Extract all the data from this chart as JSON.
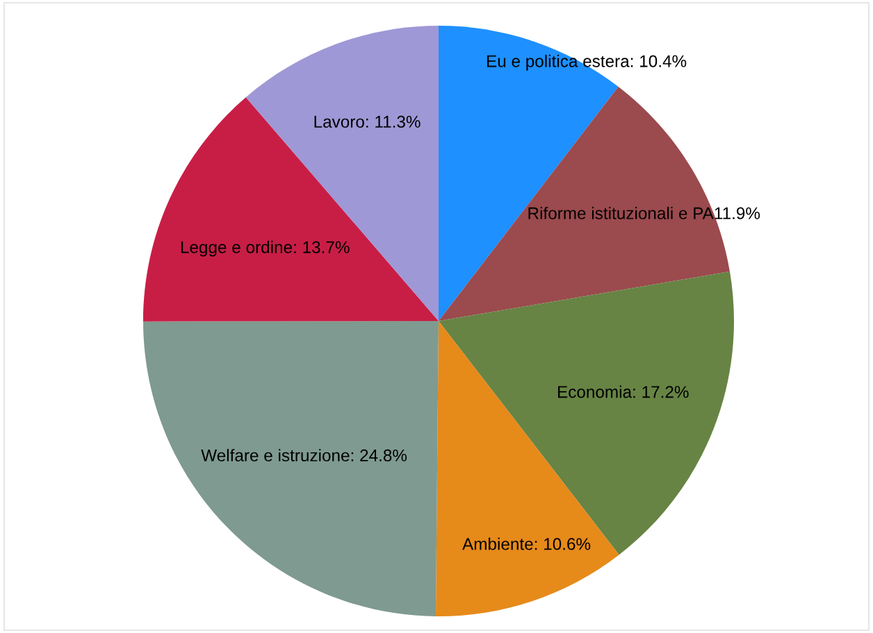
{
  "chart_data": {
    "type": "pie",
    "categories": [
      "Eu e politica estera",
      "Riforme istituzionali e PA",
      "Economia",
      "Ambiente",
      "Welfare e istruzione",
      "Legge e ordine",
      "Lavoro"
    ],
    "values": [
      10.4,
      11.9,
      17.2,
      10.6,
      24.8,
      13.7,
      11.3
    ],
    "value_labels": [
      ": 10.4%",
      "11.9%",
      ": 17.2%",
      ": 10.6%",
      ": 24.8%",
      ": 13.7%",
      ": 11.3%"
    ],
    "colors": [
      "#1e90ff",
      "#9b4a4e",
      "#678444",
      "#e68a1a",
      "#7f9a90",
      "#c81e46",
      "#9f98d6"
    ],
    "legend": false
  }
}
